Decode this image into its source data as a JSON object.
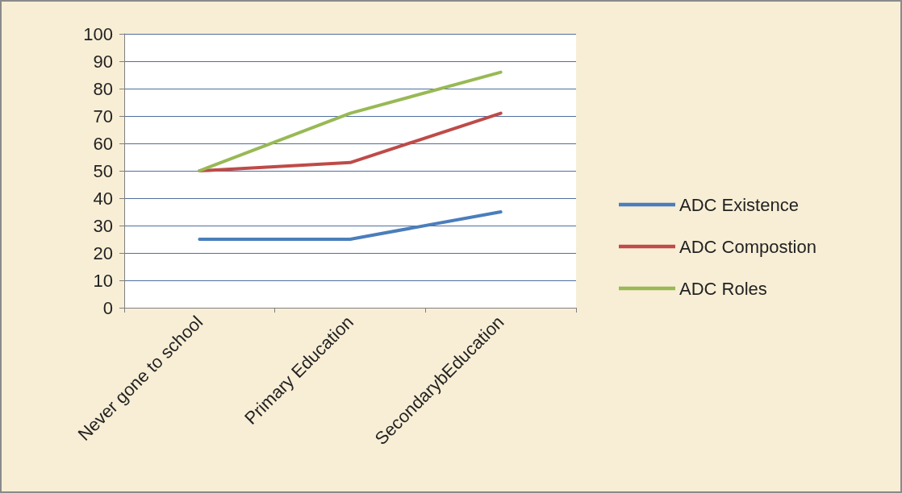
{
  "chart_data": {
    "type": "line",
    "categories": [
      "Never gone to school",
      "Primary Education",
      "SecondarybEducation"
    ],
    "series": [
      {
        "name": "ADC Existence",
        "color": "#4a7ebb",
        "values": [
          25,
          25,
          35
        ]
      },
      {
        "name": "ADC Compostion",
        "color": "#be4b48",
        "values": [
          50,
          53,
          71
        ]
      },
      {
        "name": "ADC Roles",
        "color": "#98b954",
        "values": [
          50,
          71,
          86
        ]
      }
    ],
    "ylim": [
      0,
      100
    ],
    "yticks": [
      0,
      10,
      20,
      30,
      40,
      50,
      60,
      70,
      80,
      90,
      100
    ],
    "grid": "y",
    "legend": "right",
    "marker": "none",
    "line_style": "solid"
  }
}
